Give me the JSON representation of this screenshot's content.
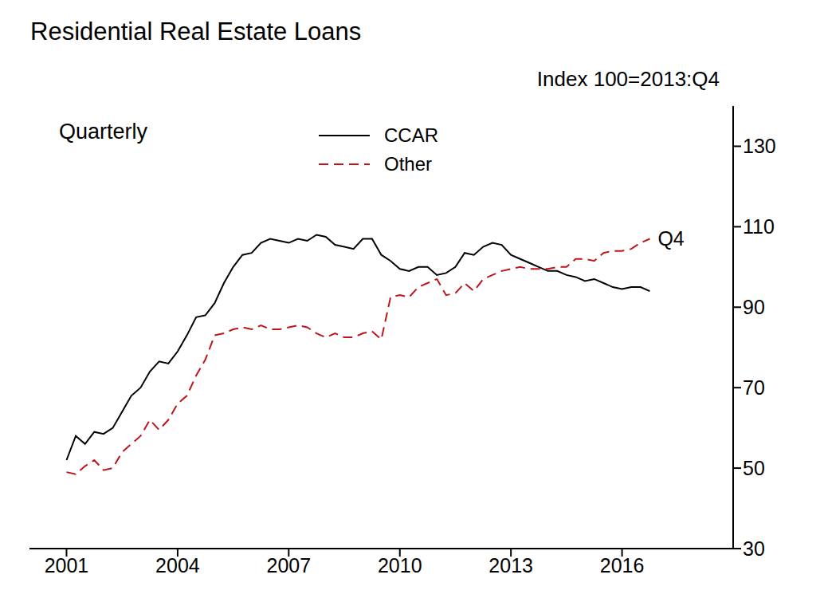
{
  "chart_data": {
    "type": "line",
    "title": "Residential Real Estate Loans",
    "subtitle": "Quarterly",
    "y_label": "Index 100=2013:Q4",
    "x": [
      2001,
      2001.25,
      2001.5,
      2001.75,
      2002,
      2002.25,
      2002.5,
      2002.75,
      2003,
      2003.25,
      2003.5,
      2003.75,
      2004,
      2004.25,
      2004.5,
      2004.75,
      2005,
      2005.25,
      2005.5,
      2005.75,
      2006,
      2006.25,
      2006.5,
      2006.75,
      2007,
      2007.25,
      2007.5,
      2007.75,
      2008,
      2008.25,
      2008.5,
      2008.75,
      2009,
      2009.25,
      2009.5,
      2009.75,
      2010,
      2010.25,
      2010.5,
      2010.75,
      2011,
      2011.25,
      2011.5,
      2011.75,
      2012,
      2012.25,
      2012.5,
      2012.75,
      2013,
      2013.25,
      2013.5,
      2013.75,
      2014,
      2014.25,
      2014.5,
      2014.75,
      2015,
      2015.25,
      2015.5,
      2015.75,
      2016,
      2016.25,
      2016.5,
      2016.75
    ],
    "series": [
      {
        "name": "CCAR",
        "color": "#000000",
        "line_style": "solid",
        "values": [
          52,
          58,
          56,
          59,
          58.5,
          60,
          64,
          68,
          70,
          74,
          76.5,
          76,
          79,
          83,
          87.5,
          88,
          91,
          96,
          100,
          103,
          103.5,
          106,
          107,
          106.5,
          106,
          107,
          106.5,
          108,
          107.5,
          105.5,
          105,
          104.5,
          107,
          107,
          103,
          101.5,
          99.5,
          99,
          100,
          100,
          98,
          98.5,
          100,
          103.5,
          103,
          105,
          106,
          105.5,
          103,
          102,
          101,
          100,
          99,
          99,
          98,
          97.5,
          96.5,
          97,
          96,
          95,
          94.5,
          95,
          95,
          94
        ]
      },
      {
        "name": "Other",
        "color": "#c0141c",
        "line_style": "dashed",
        "values": [
          49,
          48.5,
          50.5,
          52,
          49.5,
          50,
          54,
          56,
          58,
          62,
          59.5,
          62,
          66,
          68,
          73,
          77,
          83,
          83.5,
          84.5,
          85,
          84.5,
          85.5,
          84.5,
          84.5,
          85,
          85.5,
          85,
          83.5,
          82.5,
          83.5,
          82.5,
          82.5,
          83.5,
          84,
          82,
          92.5,
          93,
          92.5,
          95,
          96,
          97,
          93,
          93.5,
          96,
          94,
          97,
          98,
          99,
          99.5,
          100,
          99.5,
          99.5,
          99.5,
          100,
          100,
          102,
          102,
          101.5,
          103.5,
          104,
          104,
          104.5,
          106,
          107
        ]
      }
    ],
    "xlim": [
      2000,
      2019
    ],
    "xticks": [
      2001,
      2004,
      2007,
      2010,
      2013,
      2016
    ],
    "ylim": [
      30,
      140
    ],
    "yticks": [
      30,
      50,
      70,
      90,
      110,
      130
    ],
    "grid": false,
    "annotations": [
      {
        "text": "Q4",
        "x": 2016.75,
        "y": 107
      }
    ]
  }
}
